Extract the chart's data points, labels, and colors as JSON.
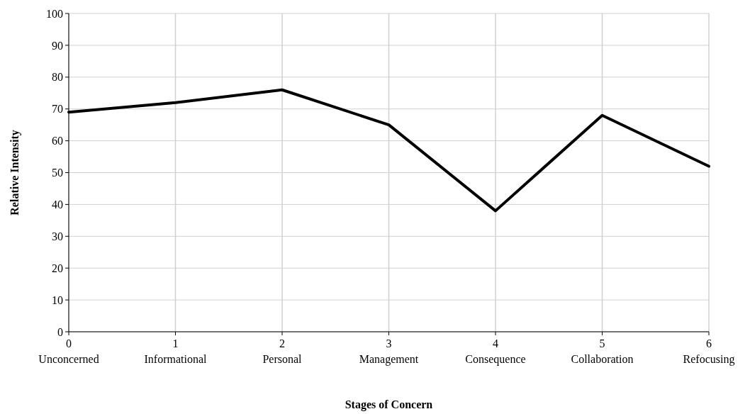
{
  "chart_data": {
    "type": "line",
    "xlabel": "Stages of Concern",
    "ylabel": "Relative Intensity",
    "categories": [
      "0\nUnconcerned",
      "1\nInformational",
      "2\nPersonal",
      "3\nManagement",
      "4\nConsequence",
      "5\nCollaboration",
      "6\nRefocusing"
    ],
    "series": [
      {
        "color": "#000000",
        "values": [
          69,
          72,
          76,
          65,
          38,
          68,
          52
        ]
      }
    ],
    "ylim": [
      0,
      100
    ],
    "yticks": [
      0,
      10,
      20,
      30,
      40,
      50,
      60,
      70,
      80,
      90,
      100
    ],
    "grid": true,
    "marker": "none",
    "line_style": "solid"
  }
}
